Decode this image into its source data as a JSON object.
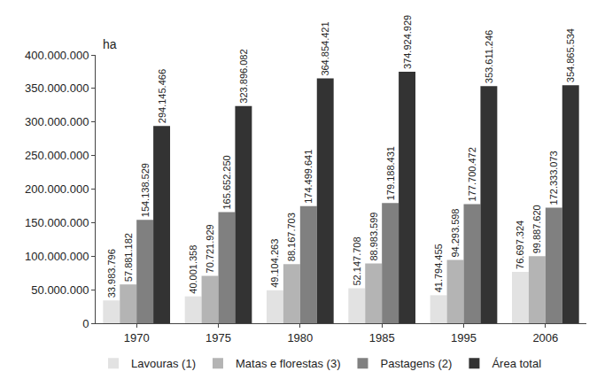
{
  "chart_data": {
    "type": "bar",
    "y_label": "ha",
    "categories": [
      "1970",
      "1975",
      "1980",
      "1985",
      "1995",
      "2006"
    ],
    "series": [
      {
        "name": "Lavouras (1)",
        "color": "#e2e2e2",
        "values": [
          33983796,
          40001358,
          49104263,
          52147708,
          41794455,
          76697324
        ],
        "value_labels": [
          "33.983.796",
          "40.001.358",
          "49.104.263",
          "52.147.708",
          "41.794.455",
          "76.697.324"
        ]
      },
      {
        "name": "Matas e florestas (3)",
        "color": "#b4b4b4",
        "values": [
          57881182,
          70721929,
          88167703,
          88983599,
          94293598,
          99887620
        ],
        "value_labels": [
          "57.881.182",
          "70.721.929",
          "88.167.703",
          "88.983.599",
          "94.293.598",
          "99.887.620"
        ]
      },
      {
        "name": "Pastagens (2)",
        "color": "#808080",
        "values": [
          154138529,
          165652250,
          174499641,
          179188431,
          177700472,
          172333073
        ],
        "value_labels": [
          "154.138.529",
          "165.652.250",
          "174.499.641",
          "179.188.431",
          "177.700.472",
          "172.333.073"
        ]
      },
      {
        "name": "Área total",
        "color": "#333333",
        "values": [
          294145466,
          323896082,
          364854421,
          374924929,
          353611246,
          354865534
        ],
        "value_labels": [
          "294.145.466",
          "323.896.082",
          "364.854.421",
          "374.924.929",
          "353.611.246",
          "354.865.534"
        ]
      }
    ],
    "ylim": [
      0,
      400000000
    ],
    "yticks": [
      0,
      {
        "value": 50000000,
        "label": "50.000.000"
      },
      {
        "value": 100000000,
        "label": "100.000.000"
      },
      {
        "value": 150000000,
        "label": "150.000.000"
      },
      {
        "value": 200000000,
        "label": "200.000.000"
      },
      {
        "value": 250000000,
        "label": "250.000.000"
      },
      {
        "value": 300000000,
        "label": "300.000.000"
      },
      {
        "value": 350000000,
        "label": "350.000.000"
      },
      {
        "value": 400000000,
        "label": "400.000.000"
      }
    ],
    "grid": false,
    "legend": "bottom",
    "data_labels": true
  }
}
